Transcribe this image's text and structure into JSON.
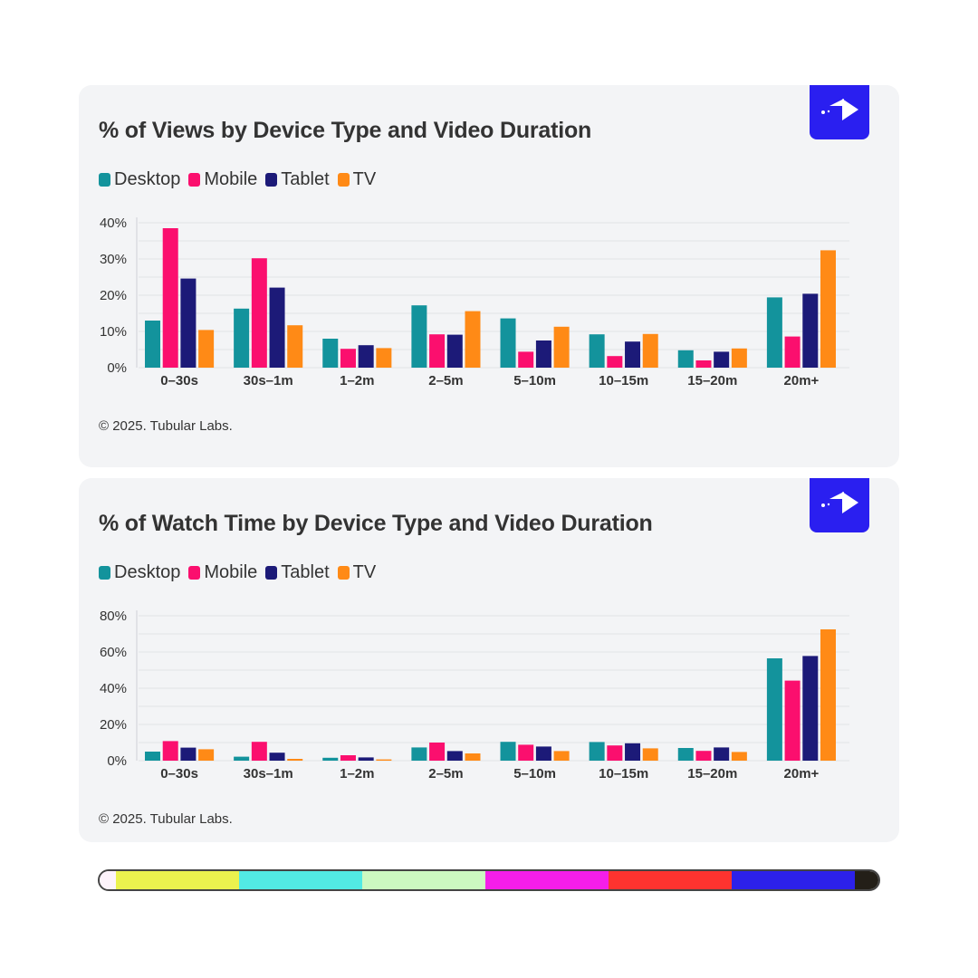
{
  "brand_color": "#2a1ff0",
  "logo_icon": "tubular-arrow-logo-icon",
  "legend": [
    {
      "label": "Desktop",
      "color": "#13939c"
    },
    {
      "label": "Mobile",
      "color": "#fb0f6e"
    },
    {
      "label": "Tablet",
      "color": "#1c1a78"
    },
    {
      "label": "TV",
      "color": "#ff8a16"
    }
  ],
  "chart_data": [
    {
      "type": "bar",
      "title": "% of Views by Device Type and Video Duration",
      "categories": [
        "0–30s",
        "30s–1m",
        "1–2m",
        "2–5m",
        "5–10m",
        "10–15m",
        "15–20m",
        "20m+"
      ],
      "series": [
        {
          "name": "Desktop",
          "color": "#13939c",
          "values": [
            13,
            16.3,
            8,
            17.2,
            13.6,
            9.2,
            4.8,
            19.4
          ]
        },
        {
          "name": "Mobile",
          "color": "#fb0f6e",
          "values": [
            38.5,
            30.2,
            5.2,
            9.2,
            4.4,
            3.2,
            2,
            8.6
          ]
        },
        {
          "name": "Tablet",
          "color": "#1c1a78",
          "values": [
            24.6,
            22.1,
            6.2,
            9.1,
            7.5,
            7.2,
            4.4,
            20.4
          ]
        },
        {
          "name": "TV",
          "color": "#ff8a16",
          "values": [
            10.4,
            11.7,
            5.4,
            15.6,
            11.3,
            9.3,
            5.3,
            32.4
          ]
        }
      ],
      "yticks": [
        "0%",
        "10%",
        "20%",
        "30%",
        "40%"
      ],
      "ylim": [
        0,
        40
      ],
      "grid": true,
      "legend_position": "top-left",
      "credit": "© 2025. Tubular Labs."
    },
    {
      "type": "bar",
      "title": "% of Watch Time by Device Type and Video Duration",
      "categories": [
        "0–30s",
        "30s–1m",
        "1–2m",
        "2–5m",
        "5–10m",
        "10–15m",
        "15–20m",
        "20m+"
      ],
      "series": [
        {
          "name": "Desktop",
          "color": "#13939c",
          "values": [
            5,
            2.2,
            1.6,
            7.3,
            10.4,
            10.3,
            7,
            56.5
          ]
        },
        {
          "name": "Mobile",
          "color": "#fb0f6e",
          "values": [
            10.8,
            10.4,
            3,
            10,
            8.8,
            8.4,
            5.4,
            44.2
          ]
        },
        {
          "name": "Tablet",
          "color": "#1c1a78",
          "values": [
            7.2,
            4.4,
            1.8,
            5.3,
            7.8,
            9.6,
            7.3,
            57.8
          ]
        },
        {
          "name": "TV",
          "color": "#ff8a16",
          "values": [
            6.3,
            1,
            0.7,
            4,
            5.3,
            6.8,
            4.8,
            72.5
          ]
        }
      ],
      "yticks": [
        "0%",
        "20%",
        "40%",
        "60%",
        "80%"
      ],
      "ylim": [
        0,
        80
      ],
      "grid": true,
      "legend_position": "top-left",
      "credit": "© 2025. Tubular Labs."
    }
  ],
  "color_strip": [
    "#fdf3fb",
    "#ebf24e",
    "#52eae4",
    "#ccf9c1",
    "#f51ee9",
    "#fe332f",
    "#2c21ea",
    "#231f18"
  ]
}
